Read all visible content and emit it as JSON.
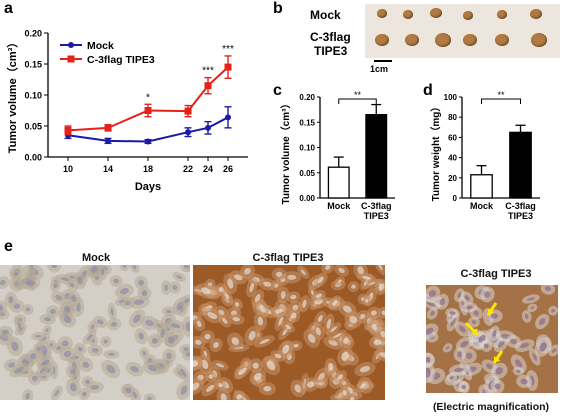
{
  "panels": {
    "a": "a",
    "b": "b",
    "c": "c",
    "d": "d",
    "e": "e"
  },
  "chart_data": [
    {
      "panel": "a",
      "type": "line",
      "x": [
        10,
        14,
        18,
        22,
        24,
        26
      ],
      "xlabel": "Days",
      "ylabel": "Tumor volume（cm³）",
      "ylim": [
        0,
        0.2
      ],
      "yticks": [
        "0.00",
        "0.05",
        "0.10",
        "0.15",
        "0.20"
      ],
      "series": [
        {
          "name": "Mock",
          "color": "#1a1aa8",
          "marker": "circle",
          "values": [
            0.035,
            0.026,
            0.025,
            0.04,
            0.047,
            0.064
          ],
          "errors": [
            0.005,
            0.004,
            0.003,
            0.007,
            0.01,
            0.017
          ]
        },
        {
          "name": "C-3flag TIPE3",
          "color": "#e32219",
          "marker": "square",
          "values": [
            0.043,
            0.047,
            0.075,
            0.074,
            0.115,
            0.145
          ],
          "errors": [
            0.007,
            0.005,
            0.01,
            0.009,
            0.013,
            0.018
          ]
        }
      ],
      "annotations": [
        {
          "x": 18,
          "text": "*"
        },
        {
          "x": 24,
          "text": "***"
        },
        {
          "x": 26,
          "text": "***"
        }
      ],
      "legend": "top-left",
      "grid": false
    },
    {
      "panel": "c",
      "type": "bar",
      "categories": [
        "Mock",
        "C-3flag TIPE3"
      ],
      "category_lines": [
        [
          "Mock"
        ],
        [
          "C-3flag",
          "TIPE3"
        ]
      ],
      "values": [
        0.061,
        0.165
      ],
      "errors": [
        0.02,
        0.02
      ],
      "fills": [
        "#ffffff",
        "#000000"
      ],
      "ylabel": "Tumor volume（cm³）",
      "ylim": [
        0,
        0.2
      ],
      "yticks": [
        "0.00",
        "0.05",
        "0.10",
        "0.15",
        "0.20"
      ],
      "significance": "**"
    },
    {
      "panel": "d",
      "type": "bar",
      "categories": [
        "Mock",
        "C-3flag TIPE3"
      ],
      "category_lines": [
        [
          "Mock"
        ],
        [
          "C-3flag",
          "TIPE3"
        ]
      ],
      "values": [
        23,
        65
      ],
      "errors": [
        9,
        7
      ],
      "fills": [
        "#ffffff",
        "#000000"
      ],
      "ylabel": "Tumor weight（mg）",
      "ylim": [
        0,
        100
      ],
      "yticks": [
        "0",
        "20",
        "40",
        "60",
        "80",
        "100"
      ],
      "significance": "**"
    }
  ],
  "photo_b": {
    "row1_label": "Mock",
    "row2_label_line1": "C-3flag",
    "row2_label_line2": "TIPE3",
    "scale_label": "1cm",
    "background": "#ece6de",
    "tumor_color": "#b07a42"
  },
  "histology_e": {
    "title_mock": "Mock",
    "title_tipe3": "C-3flag TIPE3",
    "title_magnified": "C-3flag TIPE3",
    "magnification_caption": "(Electric magnification)",
    "arrow_color": "#ffe600"
  }
}
